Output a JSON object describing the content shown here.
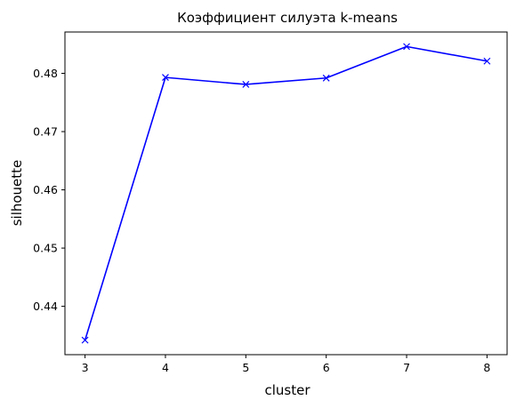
{
  "chart_data": {
    "type": "line",
    "title": "Коэффициент силуэта k-means",
    "xlabel": "cluster",
    "ylabel": "silhouette",
    "x": [
      3,
      4,
      5,
      6,
      7,
      8
    ],
    "series": [
      {
        "values": [
          0.4342,
          0.4793,
          0.4781,
          0.4792,
          0.4846,
          0.4821
        ],
        "color": "#0000ff",
        "marker": "x"
      }
    ],
    "xlim": [
      2.75,
      8.25
    ],
    "ylim": [
      0.4317,
      0.4871
    ],
    "xticks": [
      "3",
      "4",
      "5",
      "6",
      "7",
      "8"
    ],
    "yticks": [
      "0.44",
      "0.45",
      "0.46",
      "0.47",
      "0.48"
    ],
    "ytick_values": [
      0.44,
      0.45,
      0.46,
      0.47,
      0.48
    ],
    "grid": false,
    "legend": false
  }
}
